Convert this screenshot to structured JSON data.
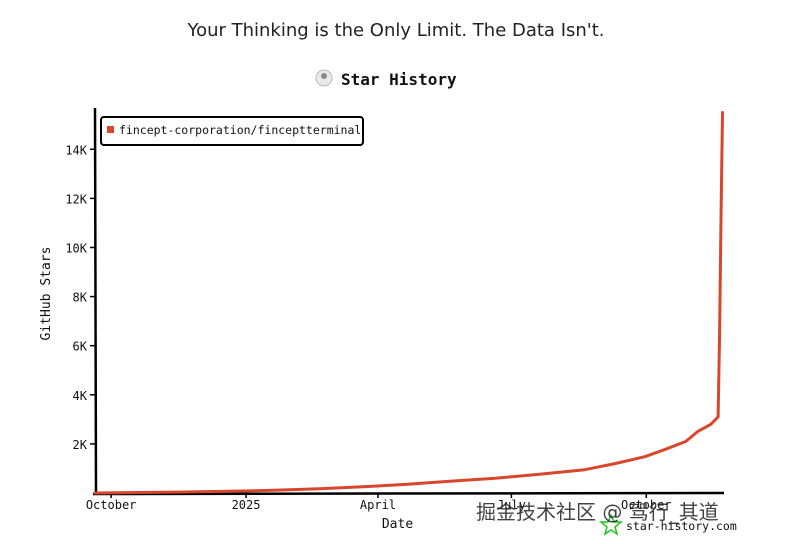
{
  "headline": "Your Thinking is the Only Limit. The Data Isn't.",
  "watermark": "掘金技术社区 @ 驾行_其道",
  "colors": {
    "line": "#d8472c",
    "axis": "#000000",
    "text": "#111111",
    "logo": "#1fc41f"
  },
  "chart_data": {
    "type": "line",
    "title": "Star History",
    "xlabel": "Date",
    "ylabel": "GitHub Stars",
    "credit": "star-history.com",
    "credit_icon": "star-history-logo-icon",
    "title_icon": "avatar-icon",
    "ylim": [
      0,
      15600
    ],
    "yticks": [
      {
        "value": 2000,
        "label": "2K"
      },
      {
        "value": 4000,
        "label": "4K"
      },
      {
        "value": 6000,
        "label": "6K"
      },
      {
        "value": 8000,
        "label": "8K"
      },
      {
        "value": 10000,
        "label": "10K"
      },
      {
        "value": 12000,
        "label": "12K"
      },
      {
        "value": 14000,
        "label": "14K"
      }
    ],
    "xlim": [
      "2024-09-20",
      "2025-11-10"
    ],
    "xticks": [
      {
        "date": "2024-10-01",
        "label": "October"
      },
      {
        "date": "2025-01-01",
        "label": "2025"
      },
      {
        "date": "2025-04-01",
        "label": "April"
      },
      {
        "date": "2025-07-01",
        "label": "July"
      },
      {
        "date": "2025-10-01",
        "label": "October"
      }
    ],
    "legend": {
      "placement": "top-left"
    },
    "series": [
      {
        "name": "fincept-corporation/finceptterminal",
        "points": [
          {
            "date": "2024-09-20",
            "stars": 0
          },
          {
            "date": "2024-10-20",
            "stars": 20
          },
          {
            "date": "2024-11-20",
            "stars": 40
          },
          {
            "date": "2024-12-20",
            "stars": 70
          },
          {
            "date": "2025-01-20",
            "stars": 110
          },
          {
            "date": "2025-02-20",
            "stars": 170
          },
          {
            "date": "2025-03-20",
            "stars": 250
          },
          {
            "date": "2025-04-20",
            "stars": 350
          },
          {
            "date": "2025-05-20",
            "stars": 480
          },
          {
            "date": "2025-06-20",
            "stars": 600
          },
          {
            "date": "2025-07-20",
            "stars": 760
          },
          {
            "date": "2025-08-20",
            "stars": 950
          },
          {
            "date": "2025-09-10",
            "stars": 1200
          },
          {
            "date": "2025-09-30",
            "stars": 1480
          },
          {
            "date": "2025-10-15",
            "stars": 1800
          },
          {
            "date": "2025-10-28",
            "stars": 2100
          },
          {
            "date": "2025-11-05",
            "stars": 2500
          },
          {
            "date": "2025-11-14",
            "stars": 2800
          },
          {
            "date": "2025-11-19",
            "stars": 3100
          },
          {
            "date": "2025-11-20",
            "stars": 6500
          },
          {
            "date": "2025-11-21",
            "stars": 11500
          },
          {
            "date": "2025-11-22",
            "stars": 15500
          }
        ]
      }
    ]
  }
}
